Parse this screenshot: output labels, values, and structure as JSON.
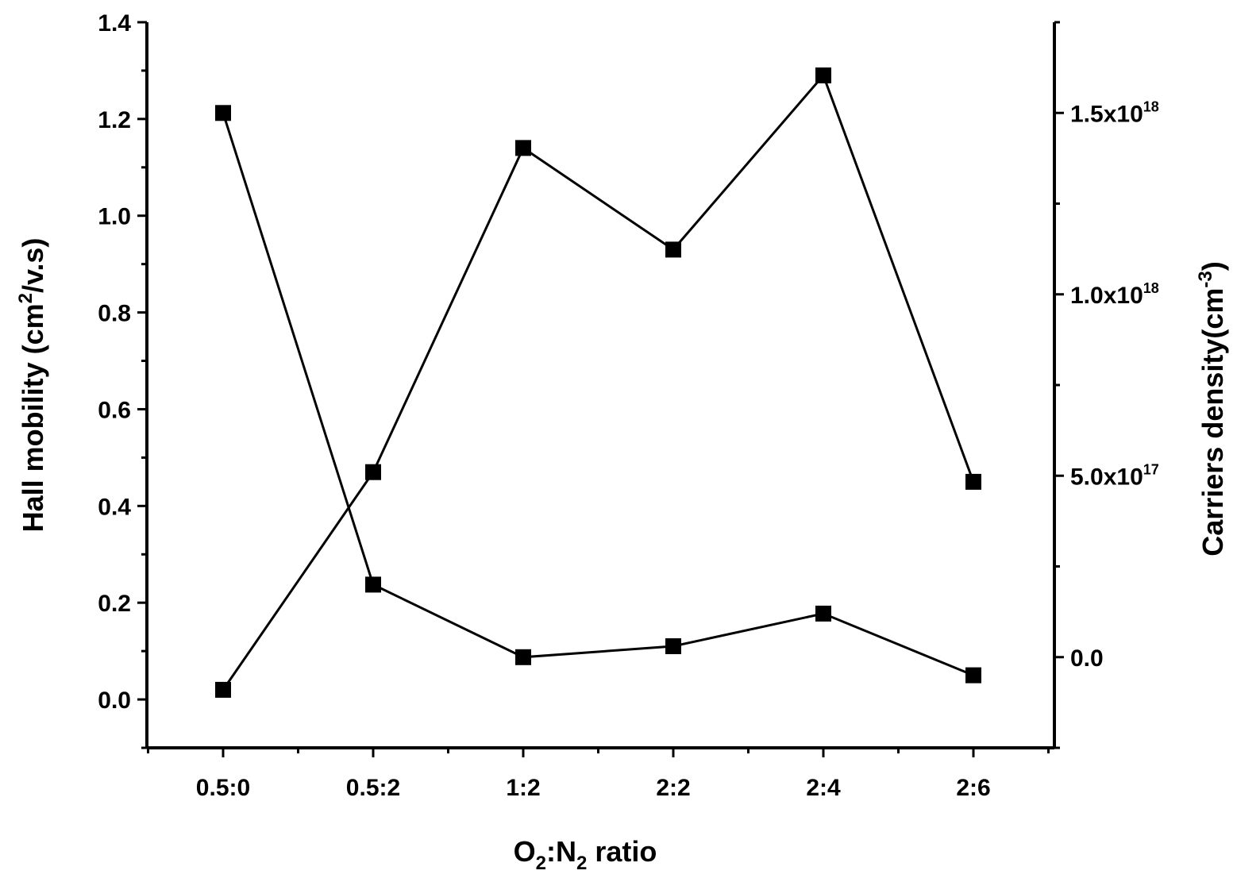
{
  "chart_data": {
    "type": "line",
    "categories": [
      "0.5:0",
      "0.5:2",
      "1:2",
      "2:2",
      "2:4",
      "2:6"
    ],
    "xlabel": {
      "base": "O",
      "sub1": "2",
      "mid": ":N",
      "sub2": "2",
      "rest": " ratio"
    },
    "ylabel_left": {
      "pre": "Hall mobility (cm",
      "sup": "2",
      "post": "/v.s)"
    },
    "ylabel_right": {
      "pre": "Carriers density(cm",
      "sup": "-3",
      "post": ")"
    },
    "y_left": {
      "ylim": [
        -0.1,
        1.4
      ],
      "ticks": [
        "0.0",
        "0.2",
        "0.4",
        "0.6",
        "0.8",
        "1.0",
        "1.2",
        "1.4"
      ],
      "tick_values": [
        0,
        0.2,
        0.4,
        0.6,
        0.8,
        1.0,
        1.2,
        1.4
      ]
    },
    "y_right": {
      "ylim": [
        -2.5e+17,
        1.75e+18
      ],
      "ticks": [
        {
          "value": 0,
          "base": "0.0",
          "exp": ""
        },
        {
          "value": 5e+17,
          "base": "5.0x10",
          "exp": "17"
        },
        {
          "value": 1e+18,
          "base": "1.0x10",
          "exp": "18"
        },
        {
          "value": 1.5e+18,
          "base": "1.5x10",
          "exp": "18"
        }
      ]
    },
    "grid": false,
    "legend": "none",
    "series": [
      {
        "axis": "left",
        "values": [
          0.02,
          0.47,
          1.14,
          0.93,
          1.29,
          0.45
        ]
      },
      {
        "axis": "right",
        "values": [
          1.5e+18,
          2e+17,
          0.0,
          3e+16,
          1.2e+17,
          -5e+16
        ]
      }
    ]
  }
}
